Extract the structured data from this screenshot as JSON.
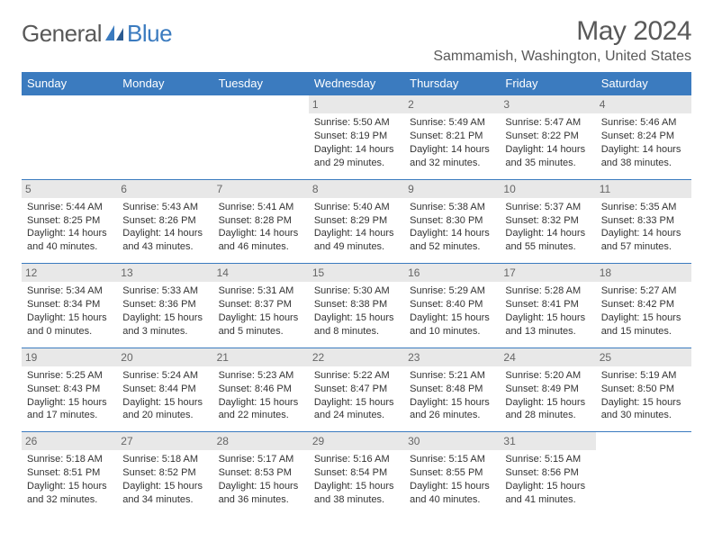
{
  "logo": {
    "part1": "General",
    "part2": "Blue"
  },
  "title": "May 2024",
  "location": "Sammamish, Washington, United States",
  "colors": {
    "header_bg": "#3b7bbf",
    "header_text": "#ffffff",
    "daynum_bg": "#e8e8e8",
    "daynum_text": "#666666",
    "border": "#3b7bbf",
    "body_text": "#333333",
    "title_text": "#595959"
  },
  "day_headers": [
    "Sunday",
    "Monday",
    "Tuesday",
    "Wednesday",
    "Thursday",
    "Friday",
    "Saturday"
  ],
  "cells": [
    {
      "n": "",
      "sr": "",
      "ss": "",
      "dl": ""
    },
    {
      "n": "",
      "sr": "",
      "ss": "",
      "dl": ""
    },
    {
      "n": "",
      "sr": "",
      "ss": "",
      "dl": ""
    },
    {
      "n": "1",
      "sr": "5:50 AM",
      "ss": "8:19 PM",
      "dl": "14 hours and 29 minutes."
    },
    {
      "n": "2",
      "sr": "5:49 AM",
      "ss": "8:21 PM",
      "dl": "14 hours and 32 minutes."
    },
    {
      "n": "3",
      "sr": "5:47 AM",
      "ss": "8:22 PM",
      "dl": "14 hours and 35 minutes."
    },
    {
      "n": "4",
      "sr": "5:46 AM",
      "ss": "8:24 PM",
      "dl": "14 hours and 38 minutes."
    },
    {
      "n": "5",
      "sr": "5:44 AM",
      "ss": "8:25 PM",
      "dl": "14 hours and 40 minutes."
    },
    {
      "n": "6",
      "sr": "5:43 AM",
      "ss": "8:26 PM",
      "dl": "14 hours and 43 minutes."
    },
    {
      "n": "7",
      "sr": "5:41 AM",
      "ss": "8:28 PM",
      "dl": "14 hours and 46 minutes."
    },
    {
      "n": "8",
      "sr": "5:40 AM",
      "ss": "8:29 PM",
      "dl": "14 hours and 49 minutes."
    },
    {
      "n": "9",
      "sr": "5:38 AM",
      "ss": "8:30 PM",
      "dl": "14 hours and 52 minutes."
    },
    {
      "n": "10",
      "sr": "5:37 AM",
      "ss": "8:32 PM",
      "dl": "14 hours and 55 minutes."
    },
    {
      "n": "11",
      "sr": "5:35 AM",
      "ss": "8:33 PM",
      "dl": "14 hours and 57 minutes."
    },
    {
      "n": "12",
      "sr": "5:34 AM",
      "ss": "8:34 PM",
      "dl": "15 hours and 0 minutes."
    },
    {
      "n": "13",
      "sr": "5:33 AM",
      "ss": "8:36 PM",
      "dl": "15 hours and 3 minutes."
    },
    {
      "n": "14",
      "sr": "5:31 AM",
      "ss": "8:37 PM",
      "dl": "15 hours and 5 minutes."
    },
    {
      "n": "15",
      "sr": "5:30 AM",
      "ss": "8:38 PM",
      "dl": "15 hours and 8 minutes."
    },
    {
      "n": "16",
      "sr": "5:29 AM",
      "ss": "8:40 PM",
      "dl": "15 hours and 10 minutes."
    },
    {
      "n": "17",
      "sr": "5:28 AM",
      "ss": "8:41 PM",
      "dl": "15 hours and 13 minutes."
    },
    {
      "n": "18",
      "sr": "5:27 AM",
      "ss": "8:42 PM",
      "dl": "15 hours and 15 minutes."
    },
    {
      "n": "19",
      "sr": "5:25 AM",
      "ss": "8:43 PM",
      "dl": "15 hours and 17 minutes."
    },
    {
      "n": "20",
      "sr": "5:24 AM",
      "ss": "8:44 PM",
      "dl": "15 hours and 20 minutes."
    },
    {
      "n": "21",
      "sr": "5:23 AM",
      "ss": "8:46 PM",
      "dl": "15 hours and 22 minutes."
    },
    {
      "n": "22",
      "sr": "5:22 AM",
      "ss": "8:47 PM",
      "dl": "15 hours and 24 minutes."
    },
    {
      "n": "23",
      "sr": "5:21 AM",
      "ss": "8:48 PM",
      "dl": "15 hours and 26 minutes."
    },
    {
      "n": "24",
      "sr": "5:20 AM",
      "ss": "8:49 PM",
      "dl": "15 hours and 28 minutes."
    },
    {
      "n": "25",
      "sr": "5:19 AM",
      "ss": "8:50 PM",
      "dl": "15 hours and 30 minutes."
    },
    {
      "n": "26",
      "sr": "5:18 AM",
      "ss": "8:51 PM",
      "dl": "15 hours and 32 minutes."
    },
    {
      "n": "27",
      "sr": "5:18 AM",
      "ss": "8:52 PM",
      "dl": "15 hours and 34 minutes."
    },
    {
      "n": "28",
      "sr": "5:17 AM",
      "ss": "8:53 PM",
      "dl": "15 hours and 36 minutes."
    },
    {
      "n": "29",
      "sr": "5:16 AM",
      "ss": "8:54 PM",
      "dl": "15 hours and 38 minutes."
    },
    {
      "n": "30",
      "sr": "5:15 AM",
      "ss": "8:55 PM",
      "dl": "15 hours and 40 minutes."
    },
    {
      "n": "31",
      "sr": "5:15 AM",
      "ss": "8:56 PM",
      "dl": "15 hours and 41 minutes."
    },
    {
      "n": "",
      "sr": "",
      "ss": "",
      "dl": ""
    }
  ],
  "labels": {
    "sunrise": "Sunrise: ",
    "sunset": "Sunset: ",
    "daylight": "Daylight: "
  }
}
